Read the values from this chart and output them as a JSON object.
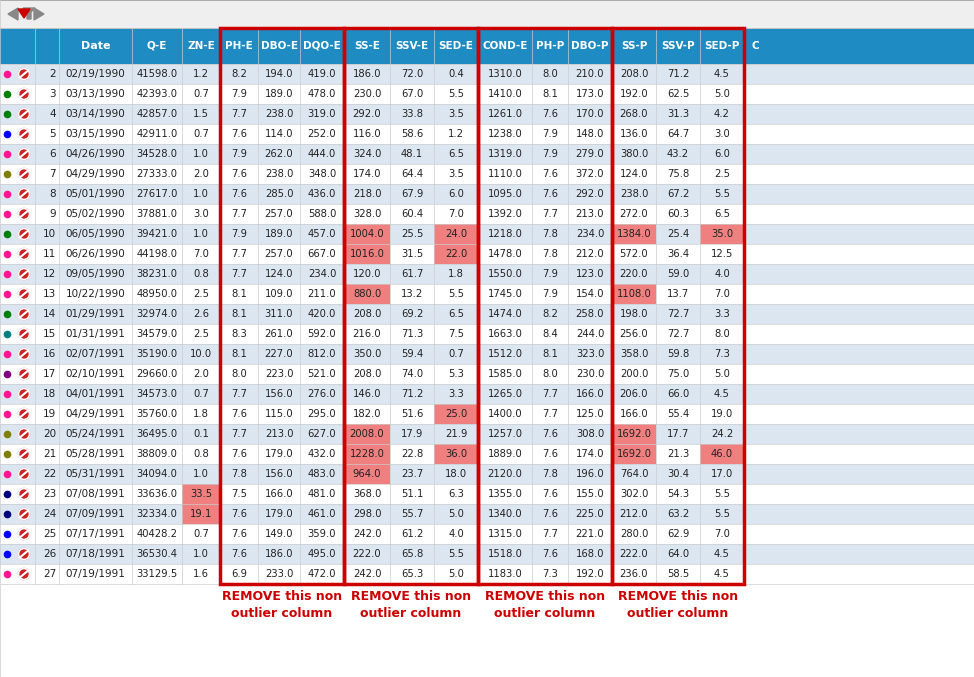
{
  "col_headers": [
    "Date",
    "Q-E",
    "ZN-E",
    "PH-E",
    "DBO-E",
    "DQO-E",
    "SS-E",
    "SSV-E",
    "SED-E",
    "COND-E",
    "PH-P",
    "DBO-P",
    "SS-P",
    "SSV-P",
    "SED-P"
  ],
  "rows": [
    [
      2,
      "02/19/1990",
      41598.0,
      1.2,
      8.2,
      194.0,
      419.0,
      186.0,
      72.0,
      0.4,
      1310.0,
      8.0,
      210.0,
      208.0,
      71.2,
      4.5
    ],
    [
      3,
      "03/13/1990",
      42393.0,
      0.7,
      7.9,
      189.0,
      478.0,
      230.0,
      67.0,
      5.5,
      1410.0,
      8.1,
      173.0,
      192.0,
      62.5,
      5.0
    ],
    [
      4,
      "03/14/1990",
      42857.0,
      1.5,
      7.7,
      238.0,
      319.0,
      292.0,
      33.8,
      3.5,
      1261.0,
      7.6,
      170.0,
      268.0,
      31.3,
      4.2
    ],
    [
      5,
      "03/15/1990",
      42911.0,
      0.7,
      7.6,
      114.0,
      252.0,
      116.0,
      58.6,
      1.2,
      1238.0,
      7.9,
      148.0,
      136.0,
      64.7,
      3.0
    ],
    [
      6,
      "04/26/1990",
      34528.0,
      1.0,
      7.9,
      262.0,
      444.0,
      324.0,
      48.1,
      6.5,
      1319.0,
      7.9,
      279.0,
      380.0,
      43.2,
      6.0
    ],
    [
      7,
      "04/29/1990",
      27333.0,
      2.0,
      7.6,
      238.0,
      348.0,
      174.0,
      64.4,
      3.5,
      1110.0,
      7.6,
      372.0,
      124.0,
      75.8,
      2.5
    ],
    [
      8,
      "05/01/1990",
      27617.0,
      1.0,
      7.6,
      285.0,
      436.0,
      218.0,
      67.9,
      6.0,
      1095.0,
      7.6,
      292.0,
      238.0,
      67.2,
      5.5
    ],
    [
      9,
      "05/02/1990",
      37881.0,
      3.0,
      7.7,
      257.0,
      588.0,
      328.0,
      60.4,
      7.0,
      1392.0,
      7.7,
      213.0,
      272.0,
      60.3,
      6.5
    ],
    [
      10,
      "06/05/1990",
      39421.0,
      1.0,
      7.9,
      189.0,
      457.0,
      1004.0,
      25.5,
      24.0,
      1218.0,
      7.8,
      234.0,
      1384.0,
      25.4,
      35.0
    ],
    [
      11,
      "06/26/1990",
      44198.0,
      7.0,
      7.7,
      257.0,
      667.0,
      1016.0,
      31.5,
      22.0,
      1478.0,
      7.8,
      212.0,
      572.0,
      36.4,
      12.5
    ],
    [
      12,
      "09/05/1990",
      38231.0,
      0.8,
      7.7,
      124.0,
      234.0,
      120.0,
      61.7,
      1.8,
      1550.0,
      7.9,
      123.0,
      220.0,
      59.0,
      4.0
    ],
    [
      13,
      "10/22/1990",
      48950.0,
      2.5,
      8.1,
      109.0,
      211.0,
      880.0,
      13.2,
      5.5,
      1745.0,
      7.9,
      154.0,
      1108.0,
      13.7,
      7.0
    ],
    [
      14,
      "01/29/1991",
      32974.0,
      2.6,
      8.1,
      311.0,
      420.0,
      208.0,
      69.2,
      6.5,
      1474.0,
      8.2,
      258.0,
      198.0,
      72.7,
      3.3
    ],
    [
      15,
      "01/31/1991",
      34579.0,
      2.5,
      8.3,
      261.0,
      592.0,
      216.0,
      71.3,
      7.5,
      1663.0,
      8.4,
      244.0,
      256.0,
      72.7,
      8.0
    ],
    [
      16,
      "02/07/1991",
      35190.0,
      10.0,
      8.1,
      227.0,
      812.0,
      350.0,
      59.4,
      0.7,
      1512.0,
      8.1,
      323.0,
      358.0,
      59.8,
      7.3
    ],
    [
      17,
      "02/10/1991",
      29660.0,
      2.0,
      8.0,
      223.0,
      521.0,
      208.0,
      74.0,
      5.3,
      1585.0,
      8.0,
      230.0,
      200.0,
      75.0,
      5.0
    ],
    [
      18,
      "04/01/1991",
      34573.0,
      0.7,
      7.7,
      156.0,
      276.0,
      146.0,
      71.2,
      3.3,
      1265.0,
      7.7,
      166.0,
      206.0,
      66.0,
      4.5
    ],
    [
      19,
      "04/29/1991",
      35760.0,
      1.8,
      7.6,
      115.0,
      295.0,
      182.0,
      51.6,
      25.0,
      1400.0,
      7.7,
      125.0,
      166.0,
      55.4,
      19.0
    ],
    [
      20,
      "05/24/1991",
      36495.0,
      0.1,
      7.7,
      213.0,
      627.0,
      2008.0,
      17.9,
      21.9,
      1257.0,
      7.6,
      308.0,
      1692.0,
      17.7,
      24.2
    ],
    [
      21,
      "05/28/1991",
      38809.0,
      0.8,
      7.6,
      179.0,
      432.0,
      1228.0,
      22.8,
      36.0,
      1889.0,
      7.6,
      174.0,
      1692.0,
      21.3,
      46.0
    ],
    [
      22,
      "05/31/1991",
      34094.0,
      1.0,
      7.8,
      156.0,
      483.0,
      964.0,
      23.7,
      18.0,
      2120.0,
      7.8,
      196.0,
      764.0,
      30.4,
      17.0
    ],
    [
      23,
      "07/08/1991",
      33636.0,
      33.5,
      7.5,
      166.0,
      481.0,
      368.0,
      51.1,
      6.3,
      1355.0,
      7.6,
      155.0,
      302.0,
      54.3,
      5.5
    ],
    [
      24,
      "07/09/1991",
      32334.0,
      19.1,
      7.6,
      179.0,
      461.0,
      298.0,
      55.7,
      5.0,
      1340.0,
      7.6,
      225.0,
      212.0,
      63.2,
      5.5
    ],
    [
      25,
      "07/17/1991",
      40428.2,
      0.7,
      7.6,
      149.0,
      359.0,
      242.0,
      61.2,
      4.0,
      1315.0,
      7.7,
      221.0,
      280.0,
      62.9,
      7.0
    ],
    [
      26,
      "07/18/1991",
      36530.4,
      1.0,
      7.6,
      186.0,
      495.0,
      222.0,
      65.8,
      5.5,
      1518.0,
      7.6,
      168.0,
      222.0,
      64.0,
      4.5
    ],
    [
      27,
      "07/19/1991",
      33129.5,
      1.6,
      6.9,
      233.0,
      472.0,
      242.0,
      65.3,
      5.0,
      1183.0,
      7.3,
      192.0,
      236.0,
      58.5,
      4.5
    ]
  ],
  "outlier_pink": {
    "SS-E": [
      10,
      11,
      13,
      20,
      21,
      22
    ],
    "SED-E": [
      10,
      11,
      19,
      21
    ],
    "SS-P": [
      10,
      13,
      20,
      21
    ],
    "SED-P": [
      10,
      21
    ],
    "ZN-E": [
      23,
      24
    ]
  },
  "red_box_col_groups": [
    [
      "PH-E",
      "DBO-E",
      "DQO-E"
    ],
    [
      "SS-E",
      "SSV-E",
      "SED-E"
    ],
    [
      "COND-E",
      "PH-P",
      "DBO-P"
    ],
    [
      "SS-P",
      "SSV-P",
      "SED-P"
    ]
  ],
  "header_bg": "#1E8BC3",
  "header_text": "#FFFFFF",
  "row_bg_even": "#DCE6F1",
  "row_bg_odd": "#FFFFFF",
  "outlier_bg": "#F08080",
  "red_box_color": "#CC0000",
  "remove_text_color": "#CC0000",
  "dot_colors": {
    "2": "#FF1493",
    "3": "#008000",
    "4": "#008000",
    "5": "#0000FF",
    "6": "#FF1493",
    "7": "#808000",
    "8": "#FF1493",
    "9": "#FF1493",
    "10": "#008000",
    "11": "#FF1493",
    "12": "#FF1493",
    "13": "#FF1493",
    "14": "#008000",
    "15": "#008080",
    "16": "#FF1493",
    "17": "#800080",
    "18": "#FF1493",
    "19": "#FF1493",
    "20": "#808000",
    "21": "#808000",
    "22": "#FF1493",
    "23": "#000080",
    "24": "#000080",
    "25": "#0000FF",
    "26": "#0000FF",
    "27": "#FF1493"
  }
}
